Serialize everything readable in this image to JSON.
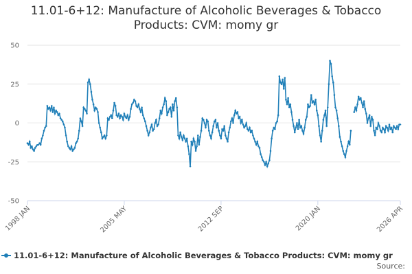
{
  "chart_data": {
    "type": "line",
    "title": "11.01-6+12: Manufacture of Alcoholic Beverages & Tobacco Products: CVM: momy gr",
    "source": "Source:",
    "x": [
      "1998 JAN",
      "1998 FEB",
      "1998 MAR",
      "1998 APR",
      "1998 MAY",
      "1998 JUN",
      "1998 JUL",
      "1998 AUG",
      "1998 SEP",
      "1998 OCT",
      "1998 NOV",
      "1998 DEC",
      "1999 JAN",
      "1999 FEB",
      "1999 MAR",
      "1999 APR",
      "1999 MAY",
      "1999 JUN",
      "1999 JUL",
      "1999 AUG",
      "1999 SEP",
      "1999 OCT",
      "1999 NOV",
      "1999 DEC",
      "2000 JAN",
      "2000 FEB",
      "2000 MAR",
      "2000 APR",
      "2000 MAY",
      "2000 JUN",
      "2000 JUL",
      "2000 AUG",
      "2000 SEP",
      "2000 OCT",
      "2000 NOV",
      "2000 DEC",
      "2001 JAN",
      "2001 FEB",
      "2001 MAR",
      "2001 APR",
      "2001 MAY",
      "2001 JUN",
      "2001 JUL",
      "2001 AUG",
      "2001 SEP",
      "2001 OCT",
      "2001 NOV",
      "2001 DEC",
      "2002 JAN",
      "2002 FEB",
      "2002 MAR",
      "2002 APR",
      "2002 MAY",
      "2002 JUN",
      "2002 JUL",
      "2002 AUG",
      "2002 SEP",
      "2002 OCT",
      "2002 NOV",
      "2002 DEC",
      "2003 JAN",
      "2003 FEB",
      "2003 MAR",
      "2003 APR",
      "2003 MAY",
      "2003 JUN",
      "2003 JUL",
      "2003 AUG",
      "2003 SEP",
      "2003 OCT",
      "2003 NOV",
      "2003 DEC",
      "2004 JAN",
      "2004 FEB",
      "2004 MAR",
      "2004 APR",
      "2004 MAY",
      "2004 JUN",
      "2004 JUL",
      "2004 AUG",
      "2004 SEP",
      "2004 OCT",
      "2004 NOV",
      "2004 DEC",
      "2005 JAN",
      "2005 FEB",
      "2005 MAR",
      "2005 APR",
      "2005 MAY",
      "2005 JUN",
      "2005 JUL",
      "2005 AUG",
      "2005 SEP",
      "2005 OCT",
      "2005 NOV",
      "2005 DEC",
      "2006 JAN",
      "2006 FEB",
      "2006 MAR",
      "2006 APR",
      "2006 MAY",
      "2006 JUN",
      "2006 JUL",
      "2006 AUG",
      "2006 SEP",
      "2006 OCT",
      "2006 NOV",
      "2006 DEC",
      "2007 JAN",
      "2007 FEB",
      "2007 MAR",
      "2007 APR",
      "2007 MAY",
      "2007 JUN",
      "2007 JUL",
      "2007 AUG",
      "2007 SEP",
      "2007 OCT",
      "2007 NOV",
      "2007 DEC",
      "2008 JAN",
      "2008 FEB",
      "2008 MAR",
      "2008 APR",
      "2008 MAY",
      "2008 JUN",
      "2008 JUL",
      "2008 AUG",
      "2008 SEP",
      "2008 OCT",
      "2008 NOV",
      "2008 DEC",
      "2009 JAN",
      "2009 FEB",
      "2009 MAR",
      "2009 APR",
      "2009 MAY",
      "2009 JUN",
      "2009 JUL",
      "2009 AUG",
      "2009 SEP",
      "2009 OCT",
      "2009 NOV",
      "2009 DEC",
      "2010 JAN",
      "2010 FEB",
      "2010 MAR",
      "2010 APR",
      "2010 MAY",
      "2010 JUN",
      "2010 JUL",
      "2010 AUG",
      "2010 SEP",
      "2010 OCT",
      "2010 NOV",
      "2010 DEC",
      "2011 JAN",
      "2011 FEB",
      "2011 MAR",
      "2011 APR",
      "2011 MAY",
      "2011 JUN",
      "2011 JUL",
      "2011 AUG",
      "2011 SEP",
      "2011 OCT",
      "2011 NOV",
      "2011 DEC",
      "2012 JAN",
      "2012 FEB",
      "2012 MAR",
      "2012 APR",
      "2012 MAY",
      "2012 JUN",
      "2012 JUL",
      "2012 AUG",
      "2012 SEP",
      "2012 OCT",
      "2012 NOV",
      "2012 DEC",
      "2013 JAN",
      "2013 FEB",
      "2013 MAR",
      "2013 APR",
      "2013 MAY",
      "2013 JUN",
      "2013 JUL",
      "2013 AUG",
      "2013 SEP",
      "2013 OCT",
      "2013 NOV",
      "2013 DEC",
      "2014 JAN",
      "2014 FEB",
      "2014 MAR",
      "2014 APR",
      "2014 MAY",
      "2014 JUN",
      "2014 JUL",
      "2014 AUG",
      "2014 SEP",
      "2014 OCT",
      "2014 NOV",
      "2014 DEC",
      "2015 JAN",
      "2015 FEB",
      "2015 MAR",
      "2015 APR",
      "2015 MAY",
      "2015 JUN",
      "2015 JUL",
      "2015 AUG",
      "2015 SEP",
      "2015 OCT",
      "2015 NOV",
      "2015 DEC",
      "2016 JAN",
      "2016 FEB",
      "2016 MAR",
      "2016 APR",
      "2016 MAY",
      "2016 JUN",
      "2016 JUL",
      "2016 AUG",
      "2016 SEP",
      "2016 OCT",
      "2016 NOV",
      "2016 DEC",
      "2017 JAN",
      "2017 FEB",
      "2017 MAR",
      "2017 APR",
      "2017 MAY",
      "2017 JUN",
      "2017 JUL",
      "2017 AUG",
      "2017 SEP",
      "2017 OCT",
      "2017 NOV",
      "2017 DEC",
      "2018 JAN",
      "2018 FEB",
      "2018 MAR",
      "2018 APR",
      "2018 MAY",
      "2018 JUN",
      "2018 JUL",
      "2018 AUG",
      "2018 SEP",
      "2018 OCT",
      "2018 NOV",
      "2018 DEC",
      "2019 JAN",
      "2019 FEB",
      "2019 MAR",
      "2019 APR",
      "2019 MAY",
      "2019 JUN",
      "2019 JUL",
      "2019 AUG",
      "2019 SEP",
      "2019 OCT",
      "2019 NOV",
      "2019 DEC",
      "2020 JAN",
      "2020 FEB",
      "2020 MAR",
      "2020 APR",
      "2020 MAY",
      "2020 JUN",
      "2020 JUL",
      "2020 AUG",
      "2020 SEP",
      "2020 OCT",
      "2020 NOV",
      "2020 DEC",
      "2021 JAN",
      "2021 FEB",
      "2021 MAR",
      "2021 APR",
      "2021 MAY",
      "2021 JUN",
      "2021 JUL",
      "2021 AUG",
      "2021 SEP",
      "2021 OCT",
      "2021 NOV",
      "2021 DEC",
      "2022 JAN",
      "2022 FEB",
      "2022 MAR",
      "2022 APR",
      "2022 MAY",
      "2022 JUN",
      "2022 JUL",
      "2022 AUG",
      "2022 SEP",
      "2022 OCT",
      "2022 NOV",
      "2022 DEC",
      "2023 JAN",
      "2023 FEB",
      "2023 MAR",
      "2023 APR",
      "2023 MAY",
      "2023 JUN",
      "2023 JUL",
      "2023 AUG",
      "2023 SEP",
      "2023 OCT",
      "2023 NOV",
      "2023 DEC",
      "2024 JAN",
      "2024 FEB",
      "2024 MAR",
      "2024 APR",
      "2024 MAY",
      "2024 JUN",
      "2024 JUL",
      "2024 AUG",
      "2024 SEP",
      "2024 OCT",
      "2024 NOV",
      "2024 DEC",
      "2025 JAN",
      "2025 FEB",
      "2025 MAR",
      "2025 APR",
      "2025 MAY",
      "2025 JUN",
      "2025 JUL",
      "2025 AUG",
      "2025 SEP",
      "2025 OCT",
      "2025 NOV",
      "2025 DEC",
      "2026 JAN",
      "2026 FEB",
      "2026 MAR",
      "2026 APR"
    ],
    "series": [
      {
        "name": "11.01-6+12: Manufacture of Alcoholic Beverages & Tobacco Products: CVM: momy gr",
        "color": "#1f7fb8",
        "values": [
          -13,
          -14,
          -12,
          -16,
          -15,
          -17,
          -18,
          -16,
          -15,
          -14,
          -14,
          -13,
          -14,
          -10,
          -8,
          -5,
          -3,
          -2,
          11,
          9,
          10,
          8,
          11,
          7,
          10,
          6,
          8,
          7,
          5,
          6,
          3,
          2,
          1,
          -1,
          -3,
          -8,
          -12,
          -15,
          -16,
          -17,
          -15,
          -18,
          -17,
          -16,
          -13,
          -12,
          -10,
          -5,
          3,
          1,
          -2,
          10,
          9,
          8,
          6,
          26,
          28,
          25,
          20,
          15,
          12,
          8,
          10,
          9,
          7,
          0,
          -3,
          -6,
          -10,
          -9,
          -8,
          -10,
          -8,
          3,
          2,
          4,
          5,
          3,
          8,
          13,
          11,
          5,
          4,
          6,
          3,
          5,
          4,
          2,
          6,
          4,
          3,
          5,
          2,
          4,
          9,
          12,
          13,
          15,
          14,
          11,
          10,
          12,
          9,
          7,
          10,
          5,
          3,
          1,
          -2,
          -5,
          -8,
          -6,
          -3,
          -1,
          -5,
          -4,
          0,
          2,
          -2,
          -1,
          3,
          8,
          6,
          10,
          12,
          16,
          14,
          5,
          7,
          9,
          10,
          4,
          12,
          8,
          14,
          16,
          10,
          -8,
          -10,
          -6,
          -9,
          -11,
          -8,
          -10,
          -12,
          -10,
          -15,
          -20,
          -28,
          -12,
          -14,
          -10,
          -12,
          -18,
          -15,
          -8,
          -14,
          -9,
          -5,
          3,
          2,
          0,
          -3,
          2,
          1,
          -5,
          -8,
          -10,
          -6,
          -2,
          1,
          2,
          -3,
          0,
          -5,
          -8,
          -10,
          -4,
          -5,
          -2,
          -8,
          -10,
          -12,
          -6,
          -3,
          1,
          3,
          0,
          5,
          8,
          6,
          7,
          3,
          4,
          0,
          2,
          -1,
          -3,
          -2,
          0,
          -4,
          -5,
          -3,
          -6,
          -5,
          -8,
          -10,
          -12,
          -14,
          -12,
          -15,
          -16,
          -20,
          -22,
          -24,
          -25,
          -27,
          -25,
          -28,
          -26,
          -24,
          -18,
          -10,
          -5,
          -3,
          -4,
          0,
          1,
          5,
          30,
          26,
          25,
          28,
          22,
          29,
          15,
          12,
          16,
          10,
          12,
          7,
          2,
          -2,
          -6,
          -3,
          0,
          -4,
          2,
          -3,
          -2,
          -5,
          -7,
          -3,
          2,
          4,
          12,
          10,
          11,
          18,
          13,
          14,
          12,
          15,
          8,
          5,
          -2,
          -8,
          -12,
          -5,
          2,
          5,
          8,
          -2,
          10,
          25,
          40,
          38,
          30,
          26,
          18,
          10,
          8,
          3,
          -2,
          -9,
          -12,
          -15,
          -18,
          -20,
          -22,
          -18,
          -15,
          -12,
          -14,
          -5,
          null,
          null,
          7,
          10,
          8,
          12,
          17,
          15,
          16,
          13,
          10,
          14,
          9,
          6,
          0,
          3,
          5,
          -2,
          4,
          2,
          -5,
          -8,
          -3,
          -4,
          0,
          -2,
          -5,
          -6,
          -3,
          -4,
          -6,
          -2,
          -3,
          -5,
          -1,
          -4,
          -3,
          -6,
          -2,
          -3,
          -4,
          -2,
          -4,
          -1,
          -1
        ]
      }
    ],
    "ylim": [
      -50,
      50
    ],
    "yticks": [
      -50,
      -25,
      0,
      25,
      50
    ],
    "xticks": [
      "1998 JAN",
      "2005 MAY",
      "2012 SEP",
      "2020 JAN",
      "2026 APR"
    ],
    "grid": true
  }
}
